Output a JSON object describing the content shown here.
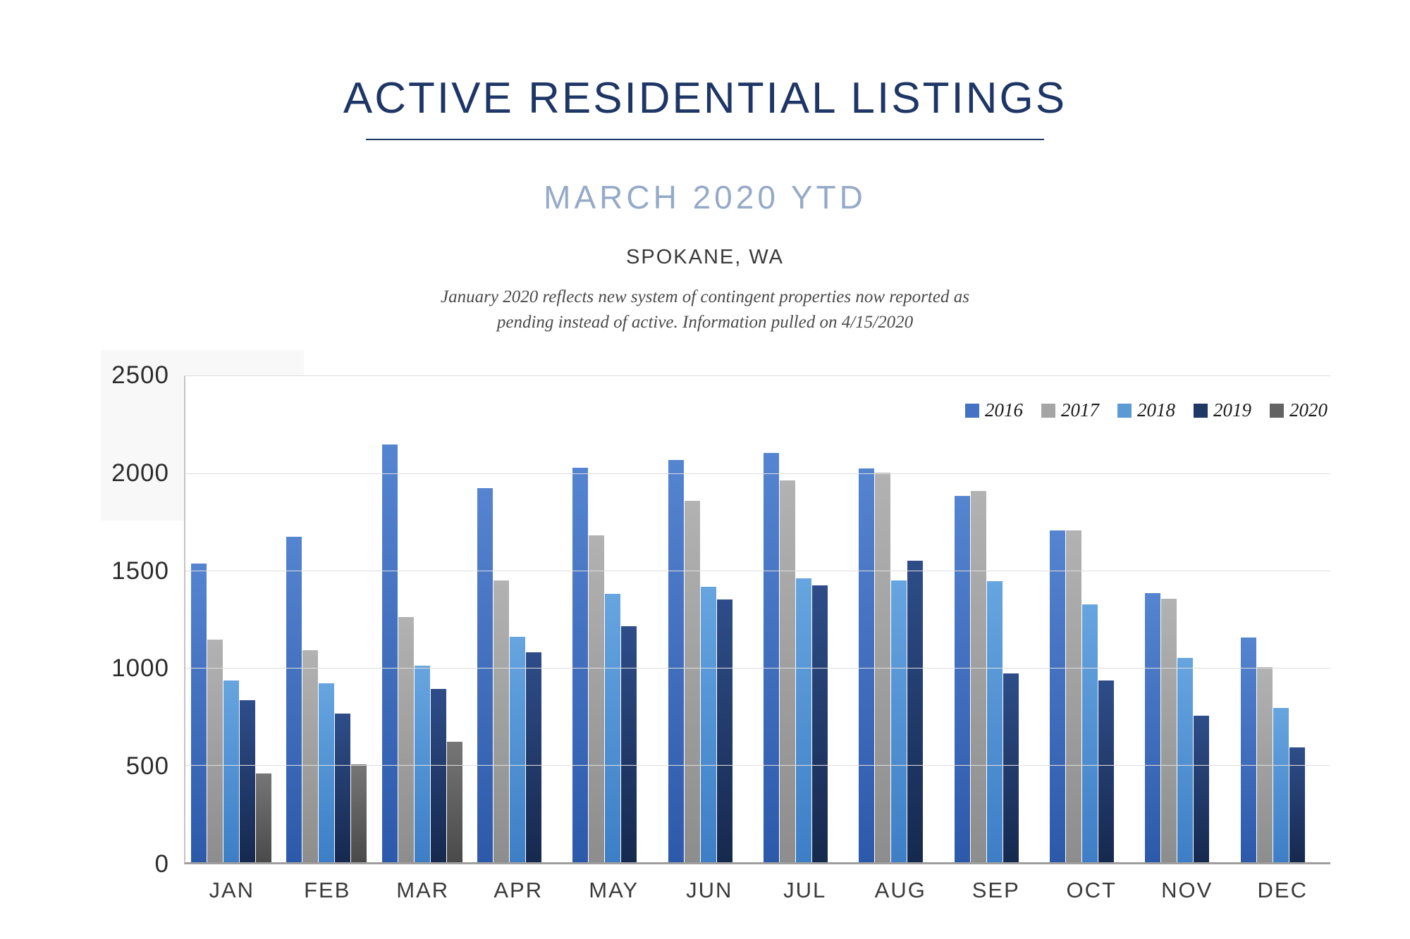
{
  "header": {
    "title": "ACTIVE RESIDENTIAL LISTINGS",
    "subtitle": "MARCH 2020 YTD",
    "location": "SPOKANE, WA",
    "note_line1": "January 2020 reflects new system of contingent properties now reported as",
    "note_line2": "pending instead of active.  Information pulled on 4/15/2020"
  },
  "colors": {
    "title_navy": "#1e3666",
    "subtitle_blue_gray": "#95aac8",
    "axis_text": "#2c2c2c",
    "gridline": "#dedede"
  },
  "chart_data": {
    "type": "bar",
    "title": "Active residential listings by month, Spokane WA",
    "categories": [
      "JAN",
      "FEB",
      "MAR",
      "APR",
      "MAY",
      "JUN",
      "JUL",
      "AUG",
      "SEP",
      "OCT",
      "NOV",
      "DEC"
    ],
    "series": [
      {
        "name": "2016",
        "color": "#4472c4",
        "color_top": "#5584d0",
        "color_bottom": "#2d59aa",
        "values": [
          1535,
          1675,
          2150,
          1925,
          2030,
          2070,
          2105,
          2025,
          1885,
          1705,
          1385,
          1155
        ]
      },
      {
        "name": "2017",
        "color": "#a5a5a5",
        "color_top": "#b2b2b2",
        "color_bottom": "#8d8d8d",
        "values": [
          1145,
          1090,
          1260,
          1450,
          1680,
          1860,
          1965,
          2005,
          1910,
          1705,
          1355,
          1005
        ]
      },
      {
        "name": "2018",
        "color": "#5b9bd5",
        "color_top": "#66a5df",
        "color_bottom": "#3d7ec6",
        "values": [
          935,
          920,
          1010,
          1160,
          1380,
          1415,
          1460,
          1450,
          1445,
          1325,
          1050,
          795
        ]
      },
      {
        "name": "2019",
        "color": "#1f3864",
        "color_top": "#2e4d89",
        "color_bottom": "#16294e",
        "values": [
          835,
          765,
          890,
          1080,
          1215,
          1350,
          1425,
          1550,
          970,
          935,
          755,
          590
        ]
      },
      {
        "name": "2020",
        "color": "#636363",
        "color_top": "#767676",
        "color_bottom": "#4a4a4a",
        "values": [
          455,
          505,
          620,
          null,
          null,
          null,
          null,
          null,
          null,
          null,
          null,
          null
        ]
      }
    ],
    "ylim": [
      0,
      2500
    ],
    "yticks": [
      0,
      500,
      1000,
      1500,
      2000,
      2500
    ],
    "grid": true,
    "legend_position": "top-right",
    "xlabel": "",
    "ylabel": ""
  }
}
